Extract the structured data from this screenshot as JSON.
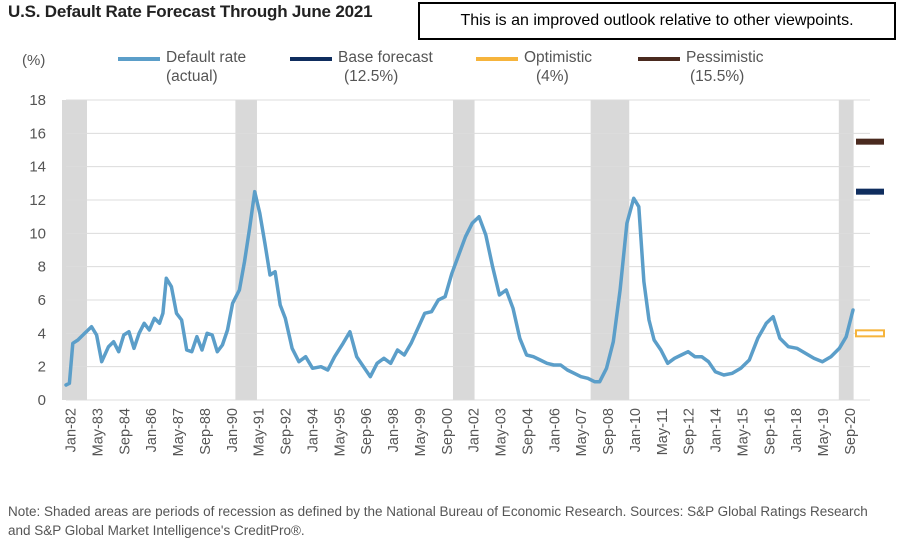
{
  "title": "U.S. Default Rate Forecast Through June 2021",
  "callout": "This is an improved outlook relative to other viewpoints.",
  "note": "Note: Shaded areas are periods of recession as defined by the National Bureau of Economic Research. Sources: S&P Global Ratings Research and S&P Global Market Intelligence's CreditPro®.",
  "legend": {
    "actual": {
      "label": "Default rate",
      "sub": "(actual)"
    },
    "base": {
      "label": "Base forecast",
      "sub": "(12.5%)"
    },
    "optimistic": {
      "label": "Optimistic",
      "sub": "(4%)"
    },
    "pessimistic": {
      "label": "Pessimistic",
      "sub": "(15.5%)"
    }
  },
  "colors": {
    "actual": "#5b9ec9",
    "base": "#0f2d5e",
    "optimistic": "#f6b43c",
    "pessimistic": "#4a2a1f",
    "recession": "#d9d9d9",
    "grid": "#dcdcdc"
  },
  "chart_data": {
    "type": "line",
    "ylabel": "(%)",
    "ylim": [
      0,
      18
    ],
    "yticks": [
      0,
      2,
      4,
      6,
      8,
      10,
      12,
      14,
      16,
      18
    ],
    "xticks": [
      "Jan-82",
      "May-83",
      "Sep-84",
      "Jan-86",
      "May-87",
      "Sep-88",
      "Jan-90",
      "May-91",
      "Sep-92",
      "Jan-94",
      "May-95",
      "Sep-96",
      "Jan-98",
      "May-99",
      "Sep-00",
      "Jan-02",
      "May-03",
      "Sep-04",
      "Jan-06",
      "May-07",
      "Sep-08",
      "Jan-10",
      "May-11",
      "Sep-12",
      "Jan-14",
      "May-15",
      "Sep-16",
      "Jan-18",
      "May-19",
      "Sep-20"
    ],
    "xrange": [
      "1982-01",
      "2021-06"
    ],
    "grid": true,
    "recessions": [
      [
        "1982-01",
        "1982-11"
      ],
      [
        "1990-07",
        "1991-03"
      ],
      [
        "2001-03",
        "2001-11"
      ],
      [
        "2007-12",
        "2009-06"
      ],
      [
        "2020-02",
        "2020-06"
      ]
    ],
    "series": [
      {
        "name": "Default rate (actual)",
        "points": [
          [
            "1982-01",
            0.9
          ],
          [
            "1982-03",
            1.0
          ],
          [
            "1982-05",
            3.4
          ],
          [
            "1982-08",
            3.6
          ],
          [
            "1982-12",
            4.0
          ],
          [
            "1983-04",
            4.4
          ],
          [
            "1983-07",
            3.9
          ],
          [
            "1983-10",
            2.3
          ],
          [
            "1984-02",
            3.2
          ],
          [
            "1984-05",
            3.5
          ],
          [
            "1984-08",
            2.9
          ],
          [
            "1984-11",
            3.9
          ],
          [
            "1985-02",
            4.1
          ],
          [
            "1985-05",
            3.1
          ],
          [
            "1985-08",
            4.0
          ],
          [
            "1985-11",
            4.6
          ],
          [
            "1986-02",
            4.2
          ],
          [
            "1986-05",
            4.9
          ],
          [
            "1986-08",
            4.6
          ],
          [
            "1986-10",
            5.2
          ],
          [
            "1986-12",
            7.3
          ],
          [
            "1987-03",
            6.8
          ],
          [
            "1987-06",
            5.2
          ],
          [
            "1987-09",
            4.8
          ],
          [
            "1987-12",
            3.0
          ],
          [
            "1988-03",
            2.9
          ],
          [
            "1988-06",
            3.8
          ],
          [
            "1988-09",
            3.0
          ],
          [
            "1988-12",
            4.0
          ],
          [
            "1989-03",
            3.9
          ],
          [
            "1989-06",
            2.9
          ],
          [
            "1989-09",
            3.3
          ],
          [
            "1989-12",
            4.2
          ],
          [
            "1990-03",
            5.8
          ],
          [
            "1990-07",
            6.6
          ],
          [
            "1990-10",
            8.3
          ],
          [
            "1991-01",
            10.3
          ],
          [
            "1991-04",
            12.5
          ],
          [
            "1991-07",
            11.2
          ],
          [
            "1991-10",
            9.4
          ],
          [
            "1992-01",
            7.5
          ],
          [
            "1992-04",
            7.7
          ],
          [
            "1992-07",
            5.7
          ],
          [
            "1992-10",
            4.9
          ],
          [
            "1993-02",
            3.1
          ],
          [
            "1993-06",
            2.3
          ],
          [
            "1993-10",
            2.6
          ],
          [
            "1994-02",
            1.9
          ],
          [
            "1994-07",
            2.0
          ],
          [
            "1994-11",
            1.8
          ],
          [
            "1995-03",
            2.6
          ],
          [
            "1995-08",
            3.4
          ],
          [
            "1995-12",
            4.1
          ],
          [
            "1996-04",
            2.6
          ],
          [
            "1996-08",
            2.0
          ],
          [
            "1996-12",
            1.4
          ],
          [
            "1997-04",
            2.2
          ],
          [
            "1997-08",
            2.5
          ],
          [
            "1997-12",
            2.2
          ],
          [
            "1998-04",
            3.0
          ],
          [
            "1998-08",
            2.7
          ],
          [
            "1998-12",
            3.4
          ],
          [
            "1999-04",
            4.3
          ],
          [
            "1999-08",
            5.2
          ],
          [
            "1999-12",
            5.3
          ],
          [
            "2000-04",
            6.0
          ],
          [
            "2000-08",
            6.2
          ],
          [
            "2000-12",
            7.6
          ],
          [
            "2001-04",
            8.7
          ],
          [
            "2001-08",
            9.8
          ],
          [
            "2001-12",
            10.6
          ],
          [
            "2002-04",
            11.0
          ],
          [
            "2002-08",
            9.9
          ],
          [
            "2002-12",
            8.0
          ],
          [
            "2003-04",
            6.3
          ],
          [
            "2003-08",
            6.6
          ],
          [
            "2003-12",
            5.5
          ],
          [
            "2004-04",
            3.7
          ],
          [
            "2004-08",
            2.7
          ],
          [
            "2004-12",
            2.6
          ],
          [
            "2005-04",
            2.4
          ],
          [
            "2005-08",
            2.2
          ],
          [
            "2005-12",
            2.1
          ],
          [
            "2006-04",
            2.1
          ],
          [
            "2006-08",
            1.8
          ],
          [
            "2006-12",
            1.6
          ],
          [
            "2007-04",
            1.4
          ],
          [
            "2007-08",
            1.3
          ],
          [
            "2007-12",
            1.1
          ],
          [
            "2008-03",
            1.1
          ],
          [
            "2008-07",
            1.9
          ],
          [
            "2008-11",
            3.5
          ],
          [
            "2009-03",
            6.6
          ],
          [
            "2009-07",
            10.6
          ],
          [
            "2009-11",
            12.1
          ],
          [
            "2010-02",
            11.6
          ],
          [
            "2010-05",
            7.1
          ],
          [
            "2010-08",
            4.8
          ],
          [
            "2010-11",
            3.6
          ],
          [
            "2011-03",
            3.0
          ],
          [
            "2011-07",
            2.2
          ],
          [
            "2011-11",
            2.5
          ],
          [
            "2012-03",
            2.7
          ],
          [
            "2012-07",
            2.9
          ],
          [
            "2012-11",
            2.6
          ],
          [
            "2013-03",
            2.6
          ],
          [
            "2013-07",
            2.3
          ],
          [
            "2013-11",
            1.7
          ],
          [
            "2014-04",
            1.5
          ],
          [
            "2014-09",
            1.6
          ],
          [
            "2015-02",
            1.9
          ],
          [
            "2015-07",
            2.4
          ],
          [
            "2015-12",
            3.7
          ],
          [
            "2016-05",
            4.6
          ],
          [
            "2016-09",
            5.0
          ],
          [
            "2017-01",
            3.7
          ],
          [
            "2017-06",
            3.2
          ],
          [
            "2017-11",
            3.1
          ],
          [
            "2018-04",
            2.8
          ],
          [
            "2018-09",
            2.5
          ],
          [
            "2019-02",
            2.3
          ],
          [
            "2019-07",
            2.6
          ],
          [
            "2019-12",
            3.1
          ],
          [
            "2020-04",
            3.8
          ],
          [
            "2020-08",
            5.4
          ]
        ]
      },
      {
        "name": "Base forecast (12.5%)",
        "forecast_date": "2021-06",
        "value": 12.5
      },
      {
        "name": "Optimistic (4%)",
        "forecast_date": "2021-06",
        "value": 4.0
      },
      {
        "name": "Pessimistic (15.5%)",
        "forecast_date": "2021-06",
        "value": 15.5
      }
    ]
  }
}
